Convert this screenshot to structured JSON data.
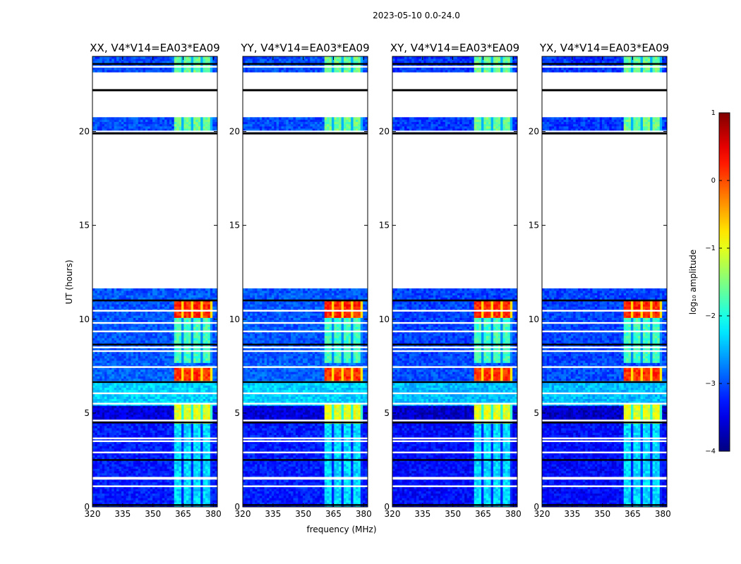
{
  "chart_data": {
    "type": "heatmap",
    "suptitle": "2023-05-10 0.0-24.0",
    "xlabel": "frequency (MHz)",
    "ylabel": "UT (hours)",
    "xlim": [
      320,
      382
    ],
    "ylim": [
      0,
      24
    ],
    "xticks": [
      320,
      335,
      350,
      365,
      380
    ],
    "yticks": [
      0,
      5,
      10,
      15,
      20
    ],
    "colorbar": {
      "label": "log₁₀ amplitude",
      "min": -4,
      "max": 1,
      "ticks": [
        1,
        0,
        -1,
        -2,
        -3,
        -4
      ],
      "colormap": "jet"
    },
    "panels": [
      {
        "pol": "XX",
        "title": "XX, V4*V14=EA03*EA09"
      },
      {
        "pol": "YY",
        "title": "YY, V4*V14=EA03*EA09"
      },
      {
        "pol": "XY",
        "title": "XY, V4*V14=EA03*EA09"
      },
      {
        "pol": "YX",
        "title": "YX, V4*V14=EA03*EA09"
      }
    ],
    "data_blocks_ut": [
      [
        0.0,
        5.35
      ],
      [
        5.35,
        6.7
      ],
      [
        6.7,
        7.7
      ],
      [
        7.7,
        11.6
      ],
      [
        19.9,
        20.8
      ],
      [
        23.15,
        24.0
      ]
    ],
    "empty_ranges_ut": [
      [
        11.6,
        19.9
      ],
      [
        20.8,
        23.15
      ]
    ],
    "gap_lines_ut": [
      0.1,
      1.1,
      1.5,
      1.55,
      2.5,
      2.9,
      3.5,
      3.65,
      4.5,
      4.6,
      5.5,
      6.05,
      6.65,
      7.45,
      8.3,
      8.5,
      8.65,
      9.35,
      9.8,
      10.45,
      11.0,
      20.0,
      22.2,
      23.45,
      23.6
    ],
    "rfi_band_mhz": [
      361,
      380
    ],
    "rfi_peak_ut": [
      [
        10.1,
        11.0,
        0.2
      ],
      [
        6.7,
        7.4,
        0.15
      ],
      [
        4.4,
        5.5,
        -1.0
      ],
      [
        19.9,
        20.8,
        -1.6
      ],
      [
        23.15,
        24.0,
        -1.6
      ],
      [
        7.7,
        10.1,
        -1.8
      ],
      [
        0.0,
        4.4,
        -2.3
      ]
    ]
  }
}
